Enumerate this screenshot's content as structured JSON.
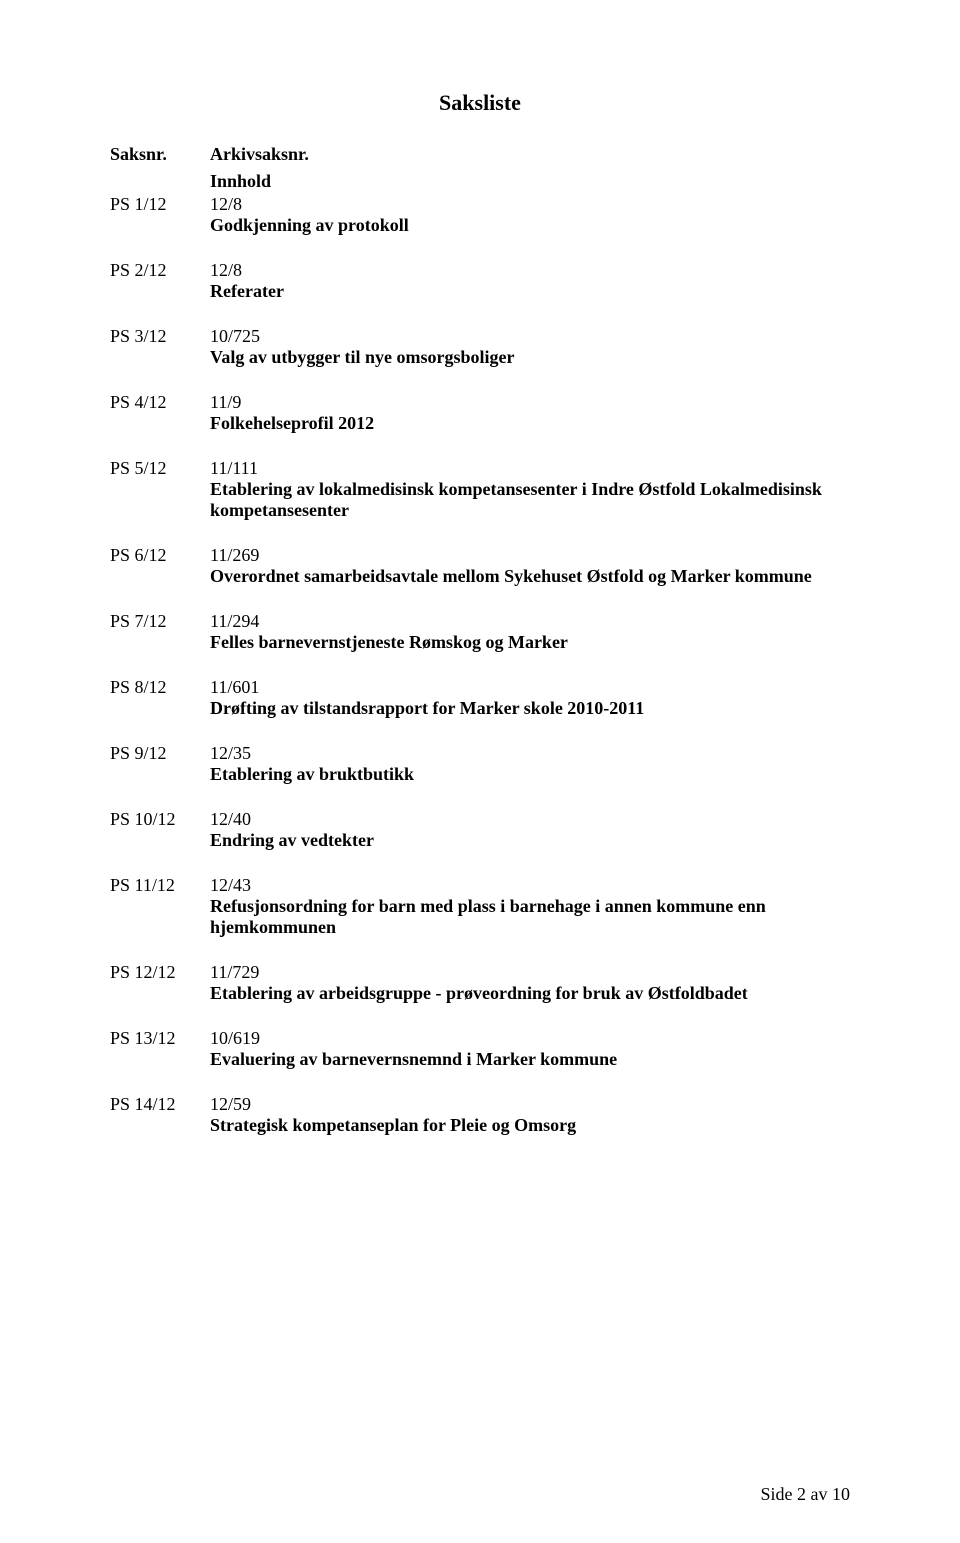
{
  "title": "Saksliste",
  "header": {
    "saksnr": "Saksnr.",
    "arkiv": "Arkivsaksnr.",
    "innhold": "Innhold"
  },
  "items": [
    {
      "saksnr": "PS 1/12",
      "arkiv": "12/8",
      "title": "Godkjenning av protokoll"
    },
    {
      "saksnr": "PS 2/12",
      "arkiv": "12/8",
      "title": "Referater"
    },
    {
      "saksnr": "PS 3/12",
      "arkiv": "10/725",
      "title": "Valg av utbygger til nye omsorgsboliger"
    },
    {
      "saksnr": "PS 4/12",
      "arkiv": "11/9",
      "title": "Folkehelseprofil 2012"
    },
    {
      "saksnr": "PS 5/12",
      "arkiv": "11/111",
      "title": "Etablering av lokalmedisinsk kompetansesenter i Indre Østfold Lokalmedisinsk kompetansesenter"
    },
    {
      "saksnr": "PS 6/12",
      "arkiv": "11/269",
      "title": "Overordnet samarbeidsavtale mellom Sykehuset Østfold og Marker kommune"
    },
    {
      "saksnr": "PS 7/12",
      "arkiv": "11/294",
      "title": "Felles barnevernstjeneste Rømskog og Marker"
    },
    {
      "saksnr": "PS 8/12",
      "arkiv": "11/601",
      "title": "Drøfting av tilstandsrapport for Marker skole 2010-2011"
    },
    {
      "saksnr": "PS 9/12",
      "arkiv": "12/35",
      "title": "Etablering av bruktbutikk"
    },
    {
      "saksnr": "PS 10/12",
      "arkiv": "12/40",
      "title": "Endring av vedtekter"
    },
    {
      "saksnr": "PS 11/12",
      "arkiv": "12/43",
      "title": "Refusjonsordning for barn med plass i barnehage i annen kommune enn hjemkommunen"
    },
    {
      "saksnr": "PS 12/12",
      "arkiv": "11/729",
      "title": "Etablering av arbeidsgruppe - prøveordning for bruk av Østfoldbadet"
    },
    {
      "saksnr": "PS 13/12",
      "arkiv": "10/619",
      "title": "Evaluering av barnevernsnemnd i Marker kommune"
    },
    {
      "saksnr": "PS 14/12",
      "arkiv": "12/59",
      "title": "Strategisk kompetanseplan for Pleie og Omsorg"
    }
  ],
  "footer": "Side 2 av 10"
}
